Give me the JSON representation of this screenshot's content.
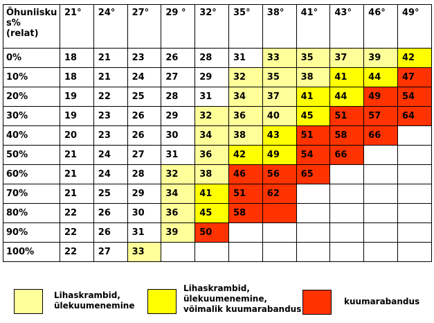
{
  "colors": {
    "none": "#ffffff",
    "low": "#ffff99",
    "mid": "#ffff00",
    "high": "#ff3300"
  },
  "table": {
    "corner_label": "Õhuniisku s% (relat)",
    "columns": [
      "21°",
      "24°",
      "27°",
      "29 °",
      "32°",
      "35°",
      "38°",
      "41°",
      "43°",
      "46°",
      "49°"
    ],
    "rows": [
      {
        "label": "0%",
        "values": [
          "18",
          "21",
          "23",
          "26",
          "28",
          "31",
          "33",
          "35",
          "37",
          "39",
          "42"
        ],
        "levels": [
          "none",
          "none",
          "none",
          "none",
          "none",
          "none",
          "low",
          "low",
          "low",
          "low",
          "mid"
        ]
      },
      {
        "label": "10%",
        "values": [
          "18",
          "21",
          "24",
          "27",
          "29",
          "32",
          "35",
          "38",
          "41",
          "44",
          "47"
        ],
        "levels": [
          "none",
          "none",
          "none",
          "none",
          "none",
          "low",
          "low",
          "low",
          "mid",
          "mid",
          "high"
        ]
      },
      {
        "label": "20%",
        "values": [
          "19",
          "22",
          "25",
          "28",
          "31",
          "34",
          "37",
          "41",
          "44",
          "49",
          "54"
        ],
        "levels": [
          "none",
          "none",
          "none",
          "none",
          "none",
          "low",
          "low",
          "mid",
          "mid",
          "high",
          "high"
        ]
      },
      {
        "label": "30%",
        "values": [
          "19",
          "23",
          "26",
          "29",
          "32",
          "36",
          "40",
          "45",
          "51",
          "57",
          "64"
        ],
        "levels": [
          "none",
          "none",
          "none",
          "none",
          "low",
          "low",
          "low",
          "mid",
          "high",
          "high",
          "high"
        ]
      },
      {
        "label": "40%",
        "values": [
          "20",
          "23",
          "26",
          "30",
          "34",
          "38",
          "43",
          "51",
          "58",
          "66",
          ""
        ],
        "levels": [
          "none",
          "none",
          "none",
          "none",
          "low",
          "low",
          "mid",
          "high",
          "high",
          "high",
          "none"
        ]
      },
      {
        "label": "50%",
        "values": [
          "21",
          "24",
          "27",
          "31",
          "36",
          "42",
          "49",
          "54",
          "66",
          "",
          ""
        ],
        "levels": [
          "none",
          "none",
          "none",
          "none",
          "low",
          "mid",
          "mid",
          "high",
          "high",
          "none",
          "none"
        ]
      },
      {
        "label": "60%",
        "values": [
          "21",
          "24",
          "28",
          "32",
          "38",
          "46",
          "56",
          "65",
          "",
          "",
          ""
        ],
        "levels": [
          "none",
          "none",
          "none",
          "low",
          "low",
          "high",
          "high",
          "high",
          "none",
          "none",
          "none"
        ]
      },
      {
        "label": "70%",
        "values": [
          "21",
          "25",
          "29",
          "34",
          "41",
          "51",
          "62",
          "",
          "",
          "",
          ""
        ],
        "levels": [
          "none",
          "none",
          "none",
          "low",
          "mid",
          "high",
          "high",
          "none",
          "none",
          "none",
          "none"
        ]
      },
      {
        "label": "80%",
        "values": [
          "22",
          "26",
          "30",
          "36",
          "45",
          "58",
          "",
          "",
          "",
          "",
          ""
        ],
        "levels": [
          "none",
          "none",
          "none",
          "low",
          "mid",
          "high",
          "high",
          "none",
          "none",
          "none",
          "none"
        ]
      },
      {
        "label": "90%",
        "values": [
          "22",
          "26",
          "31",
          "39",
          "50",
          "",
          "",
          "",
          "",
          "",
          ""
        ],
        "levels": [
          "none",
          "none",
          "none",
          "low",
          "high",
          "none",
          "none",
          "none",
          "none",
          "none",
          "none"
        ]
      },
      {
        "label": "100%",
        "values": [
          "22",
          "27",
          "33",
          "",
          "",
          "",
          "",
          "",
          "",
          "",
          ""
        ],
        "levels": [
          "none",
          "none",
          "low",
          "none",
          "none",
          "none",
          "none",
          "none",
          "none",
          "none",
          "none"
        ]
      }
    ]
  },
  "legend": [
    {
      "level": "low",
      "lines": [
        "Lihaskrambid,",
        "ülekuumenemine"
      ]
    },
    {
      "level": "mid",
      "lines": [
        "Lihaskrambid,",
        "ülekuumenemine,",
        "võimalik kuumarabandus"
      ]
    },
    {
      "level": "high",
      "lines": [
        "kuumarabandus"
      ]
    }
  ]
}
